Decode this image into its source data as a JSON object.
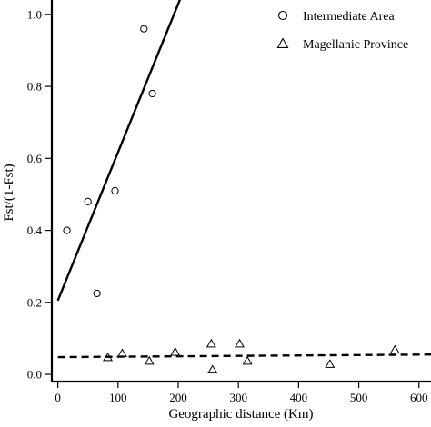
{
  "chart_data": {
    "type": "scatter",
    "title": "",
    "xlabel": "Geographic distance (Km)",
    "ylabel": "Fst/(1-Fst)",
    "xlim": [
      -10,
      620
    ],
    "ylim": [
      -0.02,
      1.04
    ],
    "xticks": [
      0,
      100,
      200,
      300,
      400,
      500,
      600
    ],
    "yticks": [
      0.0,
      0.2,
      0.4,
      0.6,
      0.8,
      1.0
    ],
    "xtick_labels": [
      "0",
      "100",
      "200",
      "300",
      "400",
      "500",
      "600"
    ],
    "ytick_labels": [
      "0.0",
      "0.2",
      "0.4",
      "0.6",
      "0.8",
      "1.0"
    ],
    "legend_position": "top-right",
    "series": [
      {
        "name": "Intermediate Area",
        "marker": "circle",
        "points": [
          [
            15,
            0.4
          ],
          [
            50,
            0.48
          ],
          [
            65,
            0.225
          ],
          [
            95,
            0.51
          ],
          [
            143,
            0.96
          ],
          [
            157,
            0.78
          ]
        ],
        "fit": {
          "style": "solid",
          "intercept": 0.205,
          "slope": 0.00412
        }
      },
      {
        "name": "Magellanic Province",
        "marker": "triangle",
        "points": [
          [
            83,
            0.047
          ],
          [
            107,
            0.058
          ],
          [
            152,
            0.037
          ],
          [
            195,
            0.062
          ],
          [
            255,
            0.085
          ],
          [
            257,
            0.013
          ],
          [
            302,
            0.085
          ],
          [
            315,
            0.037
          ],
          [
            452,
            0.028
          ],
          [
            560,
            0.068
          ]
        ],
        "fit": {
          "style": "dashed",
          "intercept": 0.048,
          "slope": 1.15e-05
        }
      }
    ]
  }
}
